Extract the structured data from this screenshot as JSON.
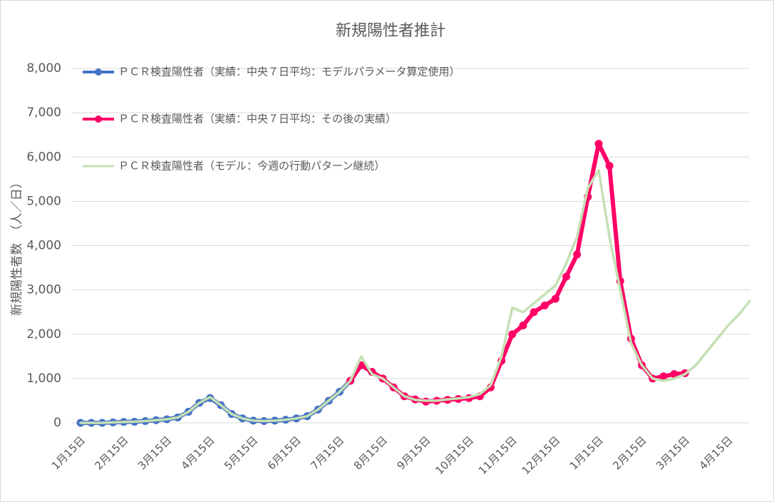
{
  "chart_data": {
    "type": "line",
    "title": "新規陽性者推計",
    "y_label": "新規陽性者数　（人／日）",
    "categories": [
      "1月15日",
      null,
      null,
      null,
      "2月15日",
      null,
      null,
      null,
      "3月15日",
      null,
      null,
      null,
      "4月15日",
      null,
      null,
      null,
      "5月15日",
      null,
      null,
      null,
      "6月15日",
      null,
      null,
      null,
      "7月15日",
      null,
      null,
      null,
      "8月15日",
      null,
      null,
      null,
      "9月15日",
      null,
      null,
      null,
      "10月15日",
      null,
      null,
      null,
      "11月15日",
      null,
      null,
      null,
      "12月15日",
      null,
      null,
      null,
      "1月15日",
      null,
      null,
      null,
      "2月15日",
      null,
      null,
      null,
      "3月15日",
      null,
      null,
      null,
      "4月15日",
      null,
      null
    ],
    "series": [
      {
        "name": "ＰＣＲ検査陽性者（実績：中央７日平均：モデルパラメータ算定使用）",
        "color": "#4472c4",
        "marker": true,
        "values": [
          0,
          0,
          0,
          10,
          20,
          25,
          40,
          60,
          80,
          120,
          250,
          450,
          560,
          400,
          200,
          100,
          50,
          40,
          50,
          70,
          100,
          150,
          300,
          500,
          700,
          950,
          null,
          null,
          null,
          null,
          null,
          null,
          null,
          null,
          null,
          null,
          null,
          null,
          null,
          null,
          null,
          null,
          null,
          null,
          null,
          null,
          null,
          null,
          null,
          null,
          null,
          null,
          null,
          null,
          null,
          null,
          null,
          null,
          null,
          null,
          null,
          null,
          null
        ]
      },
      {
        "name": "ＰＣＲ検査陽性者（実績：中央７日平均：その後の実績）",
        "color": "#ff0066",
        "marker": true,
        "values": [
          null,
          null,
          null,
          null,
          null,
          null,
          null,
          null,
          null,
          null,
          null,
          null,
          null,
          null,
          null,
          null,
          null,
          null,
          null,
          null,
          null,
          null,
          null,
          null,
          null,
          950,
          1300,
          1150,
          1000,
          800,
          600,
          530,
          480,
          500,
          520,
          540,
          560,
          600,
          800,
          1400,
          2000,
          2200,
          2500,
          2650,
          2800,
          3300,
          3800,
          5100,
          6300,
          5800,
          3200,
          1900,
          1300,
          1000,
          1050,
          1100,
          1120,
          null,
          null,
          null,
          null,
          null,
          null
        ]
      },
      {
        "name": "ＰＣＲ検査陽性者（モデル：今週の行動パターン継続）",
        "color": "#c5e0b4",
        "marker": false,
        "values": [
          0,
          0,
          0,
          10,
          20,
          25,
          40,
          60,
          80,
          120,
          250,
          450,
          580,
          400,
          200,
          100,
          50,
          40,
          50,
          70,
          100,
          150,
          300,
          500,
          700,
          950,
          1500,
          1100,
          1000,
          800,
          600,
          520,
          500,
          500,
          530,
          550,
          580,
          650,
          850,
          1500,
          2600,
          2500,
          2700,
          2900,
          3100,
          3600,
          4200,
          5300,
          5700,
          4200,
          3000,
          1800,
          1300,
          1000,
          950,
          1000,
          1100,
          1300,
          1600,
          1900,
          2200,
          2450,
          2750
        ]
      }
    ],
    "ylim": [
      0,
      8000
    ],
    "yticks": [
      0,
      {
        "value": 1000,
        "label": "1,000"
      },
      {
        "value": 2000,
        "label": "2,000"
      },
      {
        "value": 3000,
        "label": "3,000"
      },
      {
        "value": 4000,
        "label": "4,000"
      },
      {
        "value": 5000,
        "label": "5,000"
      },
      {
        "value": 6000,
        "label": "6,000"
      },
      {
        "value": 7000,
        "label": "7,000"
      },
      {
        "value": 8000,
        "label": "8,000"
      }
    ],
    "grid": true,
    "legend": "upper-left"
  }
}
